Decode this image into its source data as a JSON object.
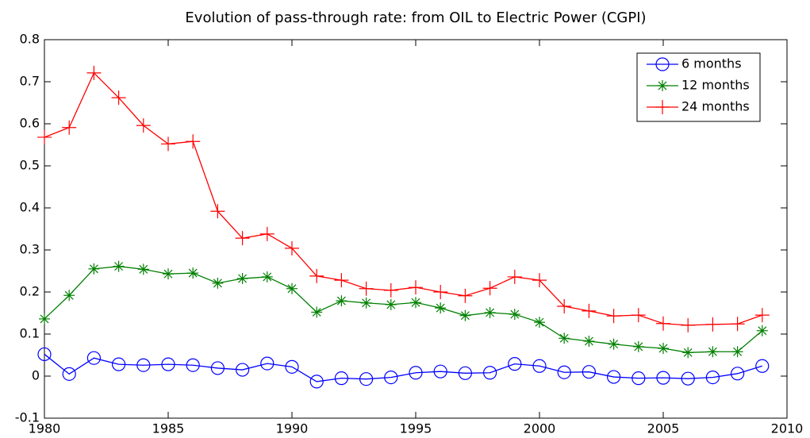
{
  "chart_data": {
    "type": "line",
    "title": "Evolution of pass-through rate: from OIL to Electric Power (CGPI)",
    "x": [
      1980,
      1981,
      1982,
      1983,
      1984,
      1985,
      1986,
      1987,
      1988,
      1989,
      1990,
      1991,
      1992,
      1993,
      1994,
      1995,
      1996,
      1997,
      1998,
      1999,
      2000,
      2001,
      2002,
      2003,
      2004,
      2005,
      2006,
      2007,
      2008,
      2009
    ],
    "series": [
      {
        "name": "6 months",
        "color": "#0000ff",
        "marker": "o",
        "values": [
          0.052,
          0.005,
          0.043,
          0.028,
          0.026,
          0.028,
          0.026,
          0.019,
          0.015,
          0.03,
          0.022,
          -0.013,
          -0.005,
          -0.007,
          -0.003,
          0.008,
          0.011,
          0.007,
          0.008,
          0.029,
          0.024,
          0.009,
          0.01,
          -0.002,
          -0.005,
          -0.004,
          -0.006,
          -0.003,
          0.006,
          0.024
        ]
      },
      {
        "name": "12 months",
        "color": "#008000",
        "marker": "*",
        "values": [
          0.136,
          0.192,
          0.255,
          0.261,
          0.254,
          0.243,
          0.245,
          0.221,
          0.232,
          0.236,
          0.208,
          0.152,
          0.179,
          0.174,
          0.17,
          0.175,
          0.162,
          0.144,
          0.151,
          0.147,
          0.128,
          0.09,
          0.083,
          0.076,
          0.07,
          0.066,
          0.056,
          0.058,
          0.058,
          0.108
        ]
      },
      {
        "name": "24 months",
        "color": "#ff0000",
        "marker": "+",
        "values": [
          0.568,
          0.591,
          0.721,
          0.662,
          0.596,
          0.552,
          0.558,
          0.392,
          0.328,
          0.338,
          0.304,
          0.238,
          0.228,
          0.208,
          0.204,
          0.211,
          0.2,
          0.191,
          0.209,
          0.236,
          0.228,
          0.166,
          0.155,
          0.143,
          0.145,
          0.125,
          0.121,
          0.123,
          0.124,
          0.145
        ]
      }
    ],
    "xlim": [
      1980,
      2010
    ],
    "xticks": [
      1980,
      1985,
      1990,
      1995,
      2000,
      2005,
      2010
    ],
    "ylim": [
      -0.1,
      0.8
    ],
    "yticks": [
      -0.1,
      0,
      0.1,
      0.2,
      0.3,
      0.4,
      0.5,
      0.6,
      0.7,
      0.8
    ],
    "grid": false,
    "legend": "northeast"
  }
}
